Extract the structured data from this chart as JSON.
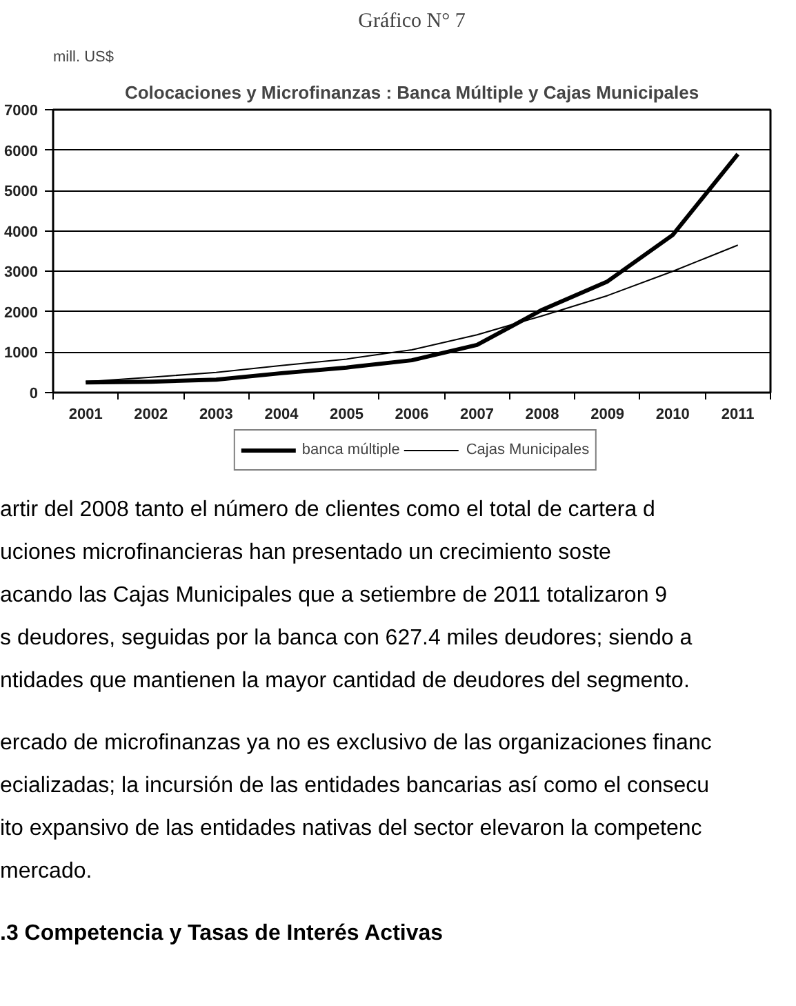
{
  "chart_data": {
    "type": "line",
    "title": "Colocaciones y Microfinanzas : Banca Múltiple y Cajas Municipales",
    "ylabel": "mill. US$",
    "categories": [
      "2001",
      "2002",
      "2003",
      "2004",
      "2005",
      "2006",
      "2007",
      "2008",
      "2009",
      "2010",
      "2011"
    ],
    "series": [
      {
        "name": "banca múltiple",
        "color": "#000000",
        "values": [
          250,
          270,
          320,
          480,
          620,
          800,
          1180,
          2050,
          2750,
          3900,
          5900
        ]
      },
      {
        "name": "Cajas Municipales",
        "color": "#000000",
        "values": [
          270,
          380,
          500,
          670,
          830,
          1060,
          1430,
          1900,
          2400,
          3000,
          3650
        ]
      }
    ],
    "ylim": [
      0,
      7000
    ],
    "yticks": [
      0,
      1000,
      2000,
      3000,
      4000,
      5000,
      6000,
      7000
    ],
    "grid": "y",
    "legend": "bottom",
    "marker": "none",
    "line_style": "solid",
    "annotations": [
      "Gráfico N° 7",
      "artir del 2008 tanto el número de clientes como el total de cartera d",
      "uciones microfinancieras han presentado un crecimiento soste",
      "acando las Cajas Municipales que a setiembre de 2011 totalizaron 9",
      "s deudores, seguidas por la banca con 627.4 miles deudores; siendo a",
      "ntidades que mantienen la mayor cantidad de deudores del segmento.",
      "ercado de microfinanzas ya no es exclusivo de las organizaciones financ",
      "ecializadas; la incursión de las entidades bancarias así como el consecu",
      "ito expansivo de las entidades nativas del sector elevaron la competenc",
      " mercado.",
      ".3 Competencia y Tasas de Interés Activas"
    ]
  }
}
